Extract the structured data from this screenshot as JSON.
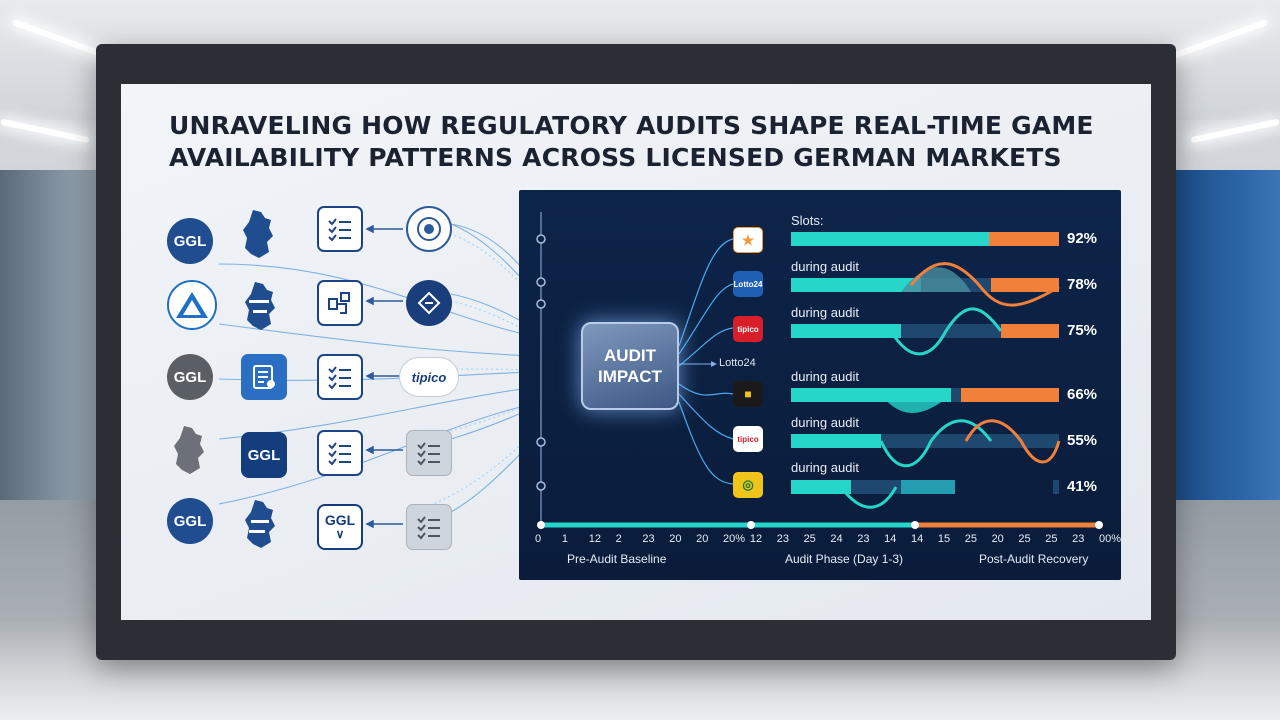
{
  "title_lines": [
    "UNRAVELING HOW REGULATORY AUDITS SHAPE REAL-TIME GAME",
    "AVAILABILITY PATTERNS ACROSS LICENSED GERMAN MARKETS"
  ],
  "left_grid": {
    "ggl_text": "GGL",
    "tipico_text": "tipico"
  },
  "center": {
    "label_line1": "AUDIT",
    "label_line2": "IMPACT",
    "lotto_label": "Lotto24"
  },
  "rows": [
    {
      "label": "Slots:",
      "pct": "92%",
      "logo_text": "",
      "logo_color": "#f29a38"
    },
    {
      "label": "during audit",
      "pct": "78%",
      "logo_text": "Lotto24",
      "logo_color": "#1f5fb4"
    },
    {
      "label": "during audit",
      "pct": "75%",
      "logo_text": "tipico",
      "logo_color": "#d81e2a"
    },
    {
      "label": "during audit",
      "pct": "66%",
      "logo_text": "",
      "logo_color": "#1a1a1a"
    },
    {
      "label": "during audit",
      "pct": "55%",
      "logo_text": "tipico",
      "logo_color": "#d81e2a"
    },
    {
      "label": "during audit",
      "pct": "41%",
      "logo_text": "",
      "logo_color": "#f0c419"
    }
  ],
  "timeline": {
    "ticks": [
      "0",
      "1",
      "12",
      "2",
      "23",
      "20",
      "20",
      "20%",
      "12",
      "23",
      "25",
      "24",
      "23",
      "14",
      "14",
      "15",
      "25",
      "20",
      "25",
      "25",
      "23",
      "00%"
    ],
    "phases": [
      "Pre-Audit Baseline",
      "Audit Phase (Day 1-3)",
      "Post-Audit Recovery"
    ]
  },
  "colors": {
    "teal": "#25d6c9",
    "orange": "#f0803a",
    "panel_bg": "#0d2449",
    "brand_blue": "#1f4d8f"
  }
}
